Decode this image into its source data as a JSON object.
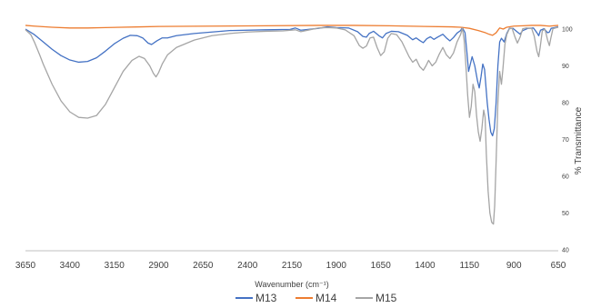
{
  "chart_data": {
    "type": "line",
    "xlabel": "Wavenumber (cm⁻¹)",
    "ylabel": "% Transmittance",
    "xlim": [
      3650,
      650
    ],
    "x_reversed": true,
    "ylim": [
      40,
      102
    ],
    "y_axis_position": "right",
    "x_ticks": [
      "3650",
      "3400",
      "3150",
      "2900",
      "2650",
      "2400",
      "2150",
      "1900",
      "1650",
      "1400",
      "1150",
      "900",
      "650"
    ],
    "y_ticks": [
      "40",
      "50",
      "60",
      "70",
      "80",
      "90",
      "100"
    ],
    "grid": false,
    "legend_position": "bottom",
    "series": [
      {
        "name": "M13",
        "color": "#4472C4",
        "points": [
          [
            3650,
            100
          ],
          [
            3600,
            98.5
          ],
          [
            3550,
            96.5
          ],
          [
            3500,
            94.5
          ],
          [
            3450,
            92.8
          ],
          [
            3400,
            91.6
          ],
          [
            3350,
            91
          ],
          [
            3300,
            91.2
          ],
          [
            3250,
            92.2
          ],
          [
            3200,
            94
          ],
          [
            3150,
            96
          ],
          [
            3100,
            97.5
          ],
          [
            3060,
            98.3
          ],
          [
            3020,
            98.2
          ],
          [
            2990,
            97.6
          ],
          [
            2960,
            96.2
          ],
          [
            2940,
            95.8
          ],
          [
            2910,
            96.8
          ],
          [
            2880,
            97.6
          ],
          [
            2850,
            97.6
          ],
          [
            2800,
            98.2
          ],
          [
            2700,
            98.8
          ],
          [
            2600,
            99.2
          ],
          [
            2500,
            99.6
          ],
          [
            2300,
            99.8
          ],
          [
            2160,
            99.9
          ],
          [
            2130,
            100.3
          ],
          [
            2100,
            99.7
          ],
          [
            2000,
            100.2
          ],
          [
            1950,
            100.6
          ],
          [
            1900,
            100.4
          ],
          [
            1830,
            100.3
          ],
          [
            1780,
            99.3
          ],
          [
            1750,
            98
          ],
          [
            1730,
            97.8
          ],
          [
            1715,
            98.8
          ],
          [
            1690,
            99.4
          ],
          [
            1660,
            98.2
          ],
          [
            1640,
            97.6
          ],
          [
            1620,
            98.8
          ],
          [
            1590,
            99.4
          ],
          [
            1550,
            99.3
          ],
          [
            1500,
            98.3
          ],
          [
            1470,
            97.1
          ],
          [
            1450,
            97.6
          ],
          [
            1430,
            96.9
          ],
          [
            1410,
            96.3
          ],
          [
            1390,
            97.4
          ],
          [
            1370,
            97.9
          ],
          [
            1350,
            97.2
          ],
          [
            1330,
            97.8
          ],
          [
            1300,
            98.6
          ],
          [
            1280,
            97.6
          ],
          [
            1260,
            96.8
          ],
          [
            1240,
            97.7
          ],
          [
            1220,
            98.9
          ],
          [
            1200,
            99.6
          ],
          [
            1190,
            100.4
          ],
          [
            1175,
            99
          ],
          [
            1165,
            94
          ],
          [
            1155,
            88.5
          ],
          [
            1145,
            90.5
          ],
          [
            1135,
            92.5
          ],
          [
            1120,
            90
          ],
          [
            1105,
            86
          ],
          [
            1095,
            84
          ],
          [
            1085,
            87
          ],
          [
            1075,
            90.5
          ],
          [
            1065,
            89
          ],
          [
            1050,
            80
          ],
          [
            1040,
            75.5
          ],
          [
            1030,
            72
          ],
          [
            1020,
            71
          ],
          [
            1010,
            73
          ],
          [
            1000,
            80
          ],
          [
            990,
            90
          ],
          [
            980,
            96.5
          ],
          [
            970,
            97.5
          ],
          [
            955,
            96.5
          ],
          [
            940,
            98.8
          ],
          [
            925,
            100.2
          ],
          [
            905,
            100.2
          ],
          [
            880,
            99.2
          ],
          [
            865,
            98.6
          ],
          [
            850,
            99.6
          ],
          [
            820,
            100.2
          ],
          [
            790,
            100.3
          ],
          [
            770,
            99
          ],
          [
            760,
            98.2
          ],
          [
            750,
            99.7
          ],
          [
            730,
            100.1
          ],
          [
            710,
            99
          ],
          [
            700,
            99.2
          ],
          [
            690,
            100.2
          ],
          [
            670,
            100.4
          ],
          [
            650,
            100.6
          ]
        ]
      },
      {
        "name": "M14",
        "color": "#ED7D31",
        "points": [
          [
            3650,
            101
          ],
          [
            3600,
            100.8
          ],
          [
            3500,
            100.5
          ],
          [
            3400,
            100.3
          ],
          [
            3300,
            100.3
          ],
          [
            3200,
            100.4
          ],
          [
            3000,
            100.6
          ],
          [
            2900,
            100.7
          ],
          [
            2600,
            100.8
          ],
          [
            2300,
            100.9
          ],
          [
            2000,
            101
          ],
          [
            1800,
            101
          ],
          [
            1600,
            100.9
          ],
          [
            1400,
            100.7
          ],
          [
            1250,
            100.6
          ],
          [
            1200,
            100.5
          ],
          [
            1150,
            100.2
          ],
          [
            1100,
            99.6
          ],
          [
            1060,
            99
          ],
          [
            1040,
            98.6
          ],
          [
            1020,
            98.3
          ],
          [
            1000,
            99
          ],
          [
            980,
            100.3
          ],
          [
            960,
            100
          ],
          [
            940,
            100.5
          ],
          [
            900,
            100.8
          ],
          [
            850,
            100.9
          ],
          [
            800,
            101
          ],
          [
            750,
            101
          ],
          [
            700,
            100.8
          ],
          [
            650,
            101
          ]
        ]
      },
      {
        "name": "M15",
        "color": "#A5A5A5",
        "points": [
          [
            3650,
            99.8
          ],
          [
            3620,
            98.5
          ],
          [
            3600,
            96.5
          ],
          [
            3570,
            93
          ],
          [
            3550,
            90.5
          ],
          [
            3500,
            85
          ],
          [
            3450,
            80.5
          ],
          [
            3400,
            77.5
          ],
          [
            3350,
            76
          ],
          [
            3300,
            75.8
          ],
          [
            3250,
            76.5
          ],
          [
            3200,
            79.5
          ],
          [
            3150,
            84
          ],
          [
            3100,
            88.5
          ],
          [
            3050,
            91.5
          ],
          [
            3010,
            92.6
          ],
          [
            2980,
            92
          ],
          [
            2950,
            90
          ],
          [
            2930,
            88
          ],
          [
            2915,
            87
          ],
          [
            2900,
            88.2
          ],
          [
            2880,
            90.5
          ],
          [
            2850,
            93
          ],
          [
            2800,
            95
          ],
          [
            2700,
            97
          ],
          [
            2600,
            98.2
          ],
          [
            2500,
            98.8
          ],
          [
            2400,
            99.2
          ],
          [
            2300,
            99.4
          ],
          [
            2200,
            99.5
          ],
          [
            2130,
            99.8
          ],
          [
            2100,
            99.3
          ],
          [
            2050,
            99.8
          ],
          [
            2000,
            100.3
          ],
          [
            1950,
            100.4
          ],
          [
            1900,
            100.3
          ],
          [
            1850,
            99.8
          ],
          [
            1800,
            98.2
          ],
          [
            1770,
            95.5
          ],
          [
            1750,
            94.8
          ],
          [
            1730,
            95.4
          ],
          [
            1710,
            97.6
          ],
          [
            1690,
            97.8
          ],
          [
            1670,
            95
          ],
          [
            1650,
            92.8
          ],
          [
            1630,
            93.8
          ],
          [
            1610,
            97.5
          ],
          [
            1590,
            98.8
          ],
          [
            1560,
            98.5
          ],
          [
            1530,
            96.5
          ],
          [
            1510,
            94.5
          ],
          [
            1490,
            92.5
          ],
          [
            1470,
            91
          ],
          [
            1450,
            91.8
          ],
          [
            1430,
            89.8
          ],
          [
            1410,
            88.8
          ],
          [
            1395,
            90
          ],
          [
            1380,
            91.5
          ],
          [
            1360,
            90
          ],
          [
            1340,
            91
          ],
          [
            1320,
            93.2
          ],
          [
            1300,
            95
          ],
          [
            1280,
            93
          ],
          [
            1260,
            92
          ],
          [
            1240,
            93.5
          ],
          [
            1220,
            96.5
          ],
          [
            1200,
            98.5
          ],
          [
            1190,
            100.3
          ],
          [
            1180,
            97
          ],
          [
            1170,
            90
          ],
          [
            1160,
            82
          ],
          [
            1150,
            76
          ],
          [
            1140,
            79
          ],
          [
            1130,
            85
          ],
          [
            1120,
            83
          ],
          [
            1110,
            76.5
          ],
          [
            1100,
            72
          ],
          [
            1090,
            69.5
          ],
          [
            1080,
            73
          ],
          [
            1070,
            78
          ],
          [
            1062,
            76
          ],
          [
            1055,
            66
          ],
          [
            1045,
            56
          ],
          [
            1035,
            50
          ],
          [
            1025,
            47.5
          ],
          [
            1015,
            47
          ],
          [
            1008,
            52
          ],
          [
            1000,
            64
          ],
          [
            990,
            80
          ],
          [
            980,
            88.5
          ],
          [
            970,
            85
          ],
          [
            962,
            89
          ],
          [
            950,
            96
          ],
          [
            940,
            98.5
          ],
          [
            925,
            100.1
          ],
          [
            910,
            100.2
          ],
          [
            895,
            98
          ],
          [
            880,
            96.2
          ],
          [
            865,
            97.8
          ],
          [
            850,
            100.1
          ],
          [
            830,
            100.3
          ],
          [
            800,
            100.2
          ],
          [
            785,
            98
          ],
          [
            770,
            94
          ],
          [
            760,
            92.5
          ],
          [
            752,
            95
          ],
          [
            740,
            99.5
          ],
          [
            725,
            100
          ],
          [
            710,
            97
          ],
          [
            700,
            95.5
          ],
          [
            692,
            97.5
          ],
          [
            680,
            100.1
          ],
          [
            665,
            100.3
          ],
          [
            650,
            100.5
          ]
        ]
      }
    ]
  }
}
